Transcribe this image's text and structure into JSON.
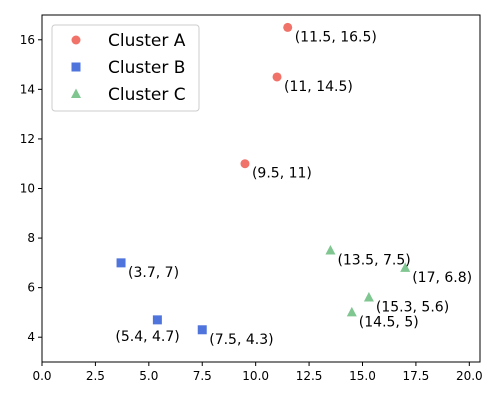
{
  "chart_data": {
    "type": "scatter",
    "title": "",
    "xlabel": "",
    "ylabel": "",
    "xlim": [
      0,
      20.5
    ],
    "ylim": [
      3,
      17
    ],
    "xticks": [
      "0.0",
      "2.5",
      "5.0",
      "7.5",
      "10.0",
      "12.5",
      "15.0",
      "17.5",
      "20.0"
    ],
    "yticks": [
      "4",
      "6",
      "8",
      "10",
      "12",
      "14",
      "16"
    ],
    "grid": false,
    "legend_position": "top-left",
    "series": [
      {
        "name": "Cluster A",
        "marker": "circle",
        "color": "#f07268",
        "points": [
          {
            "x": 11.5,
            "y": 16.5,
            "label": "(11.5, 16.5)"
          },
          {
            "x": 11,
            "y": 14.5,
            "label": "(11, 14.5)"
          },
          {
            "x": 9.5,
            "y": 11,
            "label": "(9.5, 11)"
          }
        ]
      },
      {
        "name": "Cluster B",
        "marker": "square",
        "color": "#4f74dc",
        "points": [
          {
            "x": 3.7,
            "y": 7,
            "label": "(3.7, 7)"
          },
          {
            "x": 5.4,
            "y": 4.7,
            "label": "(5.4, 4.7)"
          },
          {
            "x": 7.5,
            "y": 4.3,
            "label": "(7.5, 4.3)"
          }
        ]
      },
      {
        "name": "Cluster C",
        "marker": "triangle",
        "color": "#80c690",
        "points": [
          {
            "x": 13.5,
            "y": 7.5,
            "label": "(13.5, 7.5)"
          },
          {
            "x": 17,
            "y": 6.8,
            "label": "(17, 6.8)"
          },
          {
            "x": 15.3,
            "y": 5.6,
            "label": "(15.3, 5.6)"
          },
          {
            "x": 14.5,
            "y": 5,
            "label": "(14.5, 5)"
          }
        ]
      }
    ]
  }
}
